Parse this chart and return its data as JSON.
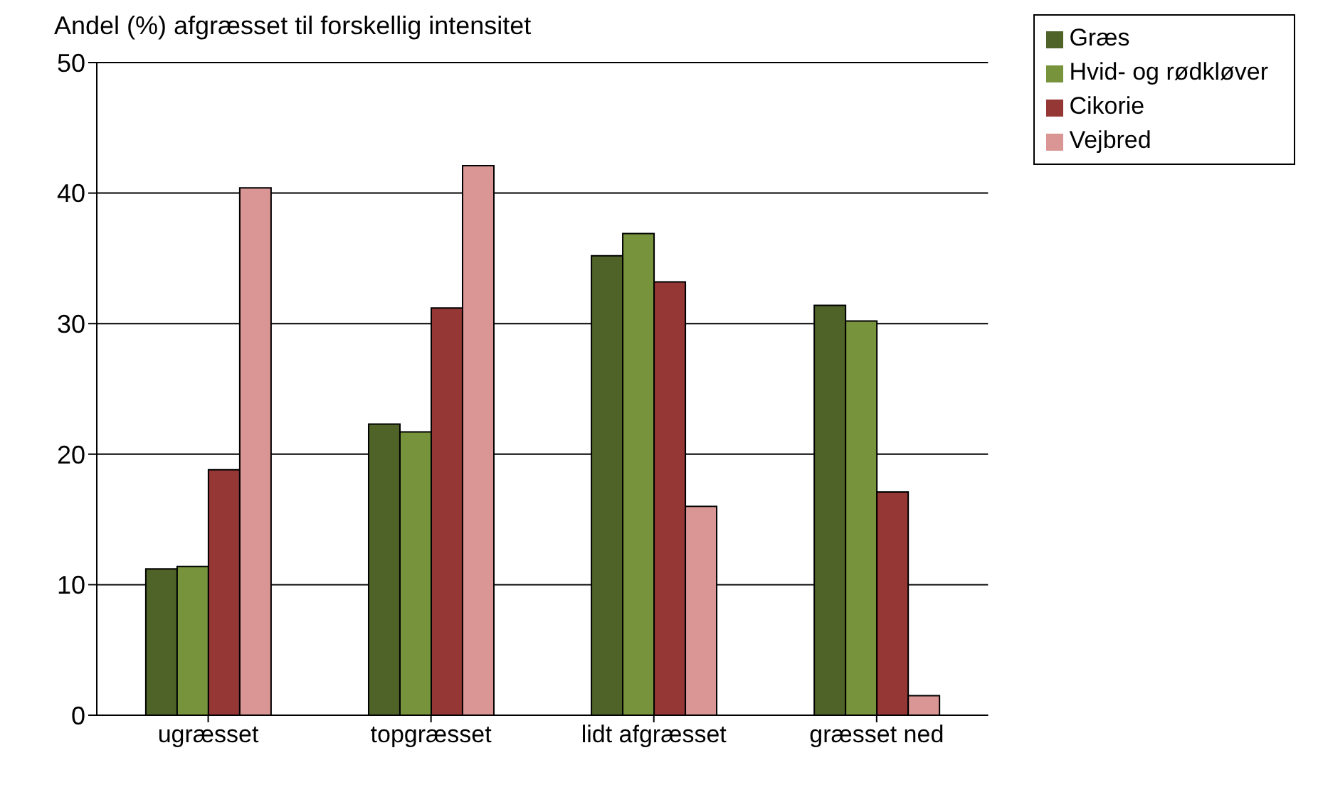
{
  "chart_data": {
    "type": "bar",
    "title": "Andel (%) afgræsset til forskellig intensitet",
    "categories": [
      "ugræsset",
      "topgræsset",
      "lidt afgræsset",
      "græsset ned"
    ],
    "series": [
      {
        "name": "Græs",
        "color": "#4f6228",
        "values": [
          11.2,
          22.3,
          35.2,
          31.4
        ]
      },
      {
        "name": "Hvid- og rødkløver",
        "color": "#77933c",
        "values": [
          11.4,
          21.7,
          36.9,
          30.2
        ]
      },
      {
        "name": "Cikorie",
        "color": "#953735",
        "values": [
          18.8,
          31.2,
          33.2,
          17.1
        ]
      },
      {
        "name": "Vejbred",
        "color": "#d99694",
        "values": [
          40.4,
          42.1,
          16.0,
          1.5
        ]
      }
    ],
    "ylim": [
      0,
      50
    ],
    "yticks": [
      0,
      10,
      20,
      30,
      40,
      50
    ],
    "grid": "y",
    "legend": "top right"
  }
}
